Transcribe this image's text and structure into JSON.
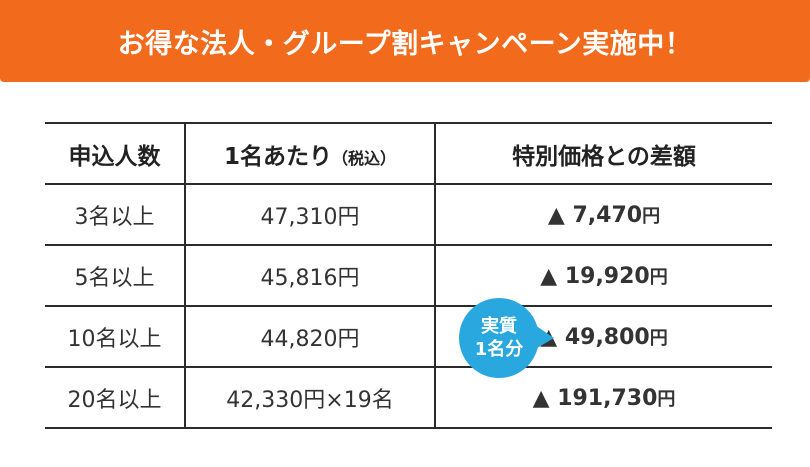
{
  "banner": {
    "title": "お得な法人・グループ割キャンペーン実施中！",
    "color": "#f26a1b"
  },
  "table": {
    "headers": {
      "count": "申込人数",
      "per_person": "1名あたり",
      "per_person_note": "（税込）",
      "difference": "特別価格との差額"
    },
    "rows": [
      {
        "count": "3名以上",
        "price": "47,310円",
        "diff": "▲ 7,470",
        "diff_unit": "円"
      },
      {
        "count": "5名以上",
        "price": "45,816円",
        "diff": "▲ 19,920",
        "diff_unit": "円"
      },
      {
        "count": "10名以上",
        "price": "44,820円",
        "diff": "▲ 49,800",
        "diff_unit": "円"
      },
      {
        "count": "20名以上",
        "price": "42,330円×19名",
        "diff": "▲ 191,730",
        "diff_unit": "円"
      }
    ]
  },
  "callout": {
    "line1": "実質",
    "line2": "1名分",
    "color": "#29a8e0"
  }
}
